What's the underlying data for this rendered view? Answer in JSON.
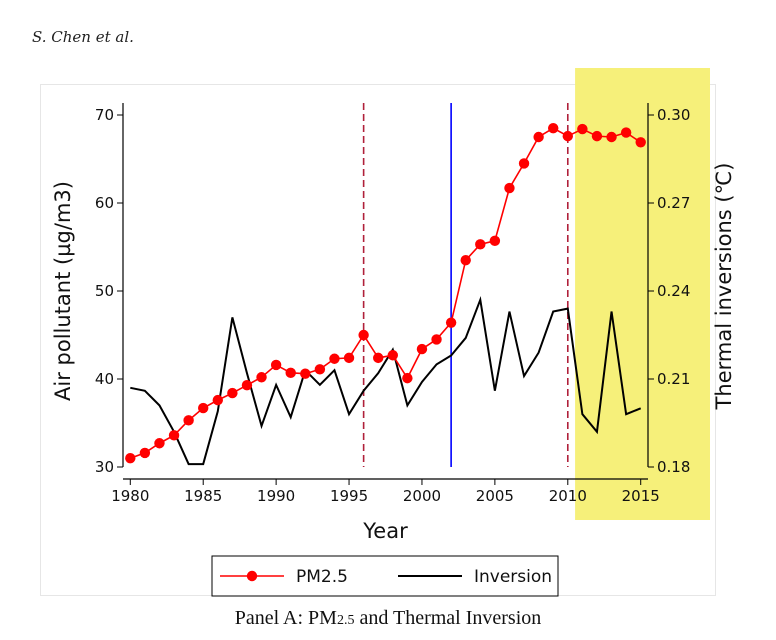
{
  "header": {
    "author": "S. Chen et al."
  },
  "caption": {
    "prefix": "Panel A: PM",
    "sub": "2.5",
    "suffix": " and Thermal Inversion"
  },
  "colors": {
    "pm25": "#ff0000",
    "inversion": "#000000",
    "highlight": "#f6f07a",
    "red_dashed": "#b0203a",
    "blue_line": "#0000ff"
  },
  "chart_data": {
    "type": "line",
    "xlabel": "Year",
    "ylabel": "Air pollutant (µg/m3)",
    "y2label": "Thermal inversions (℃)",
    "xlim": [
      1980,
      2015
    ],
    "ylim": [
      30,
      70
    ],
    "y2lim": [
      0.18,
      0.3
    ],
    "x_ticks": [
      "1980",
      "1985",
      "1990",
      "1995",
      "2000",
      "2005",
      "2010",
      "2015"
    ],
    "y_ticks": [
      "30",
      "40",
      "50",
      "60",
      "70"
    ],
    "y2_ticks": [
      "0.18",
      "0.21",
      "0.24",
      "0.27",
      "0.30"
    ],
    "x": [
      1980,
      1981,
      1982,
      1983,
      1984,
      1985,
      1986,
      1987,
      1988,
      1989,
      1990,
      1991,
      1992,
      1993,
      1994,
      1995,
      1996,
      1997,
      1998,
      1999,
      2000,
      2001,
      2002,
      2003,
      2004,
      2005,
      2006,
      2007,
      2008,
      2009,
      2010,
      2011,
      2012,
      2013,
      2014,
      2015
    ],
    "series": [
      {
        "name": "PM2.5",
        "axis": "left",
        "marker": "circle",
        "values": [
          31.0,
          31.6,
          32.7,
          33.6,
          35.3,
          36.7,
          37.6,
          38.4,
          39.3,
          40.2,
          41.6,
          40.7,
          40.6,
          41.1,
          42.3,
          42.4,
          45.0,
          42.4,
          42.7,
          40.1,
          43.4,
          44.5,
          46.4,
          53.5,
          55.3,
          55.7,
          61.7,
          64.5,
          67.5,
          68.5,
          67.6,
          68.4,
          67.6,
          67.5,
          68.0,
          66.9
        ]
      },
      {
        "name": "Inversion",
        "axis": "right",
        "marker": "none",
        "values": [
          0.207,
          0.206,
          0.201,
          0.192,
          0.181,
          0.181,
          0.199,
          0.231,
          0.212,
          0.194,
          0.208,
          0.197,
          0.213,
          0.208,
          0.213,
          0.198,
          0.206,
          0.212,
          0.22,
          0.201,
          0.209,
          0.215,
          0.218,
          0.224,
          0.237,
          0.206,
          0.233,
          0.211,
          0.219,
          0.233,
          0.234,
          0.198,
          0.192,
          0.233,
          0.198,
          0.2
        ]
      }
    ],
    "vertical_lines": [
      {
        "x": 1996,
        "style": "dashed"
      },
      {
        "x": 2002,
        "style": "solid"
      },
      {
        "x": 2010,
        "style": "dashed"
      }
    ],
    "highlight_region": [
      2010.5,
      2015.5
    ],
    "grid": false,
    "legend_position": "bottom"
  }
}
